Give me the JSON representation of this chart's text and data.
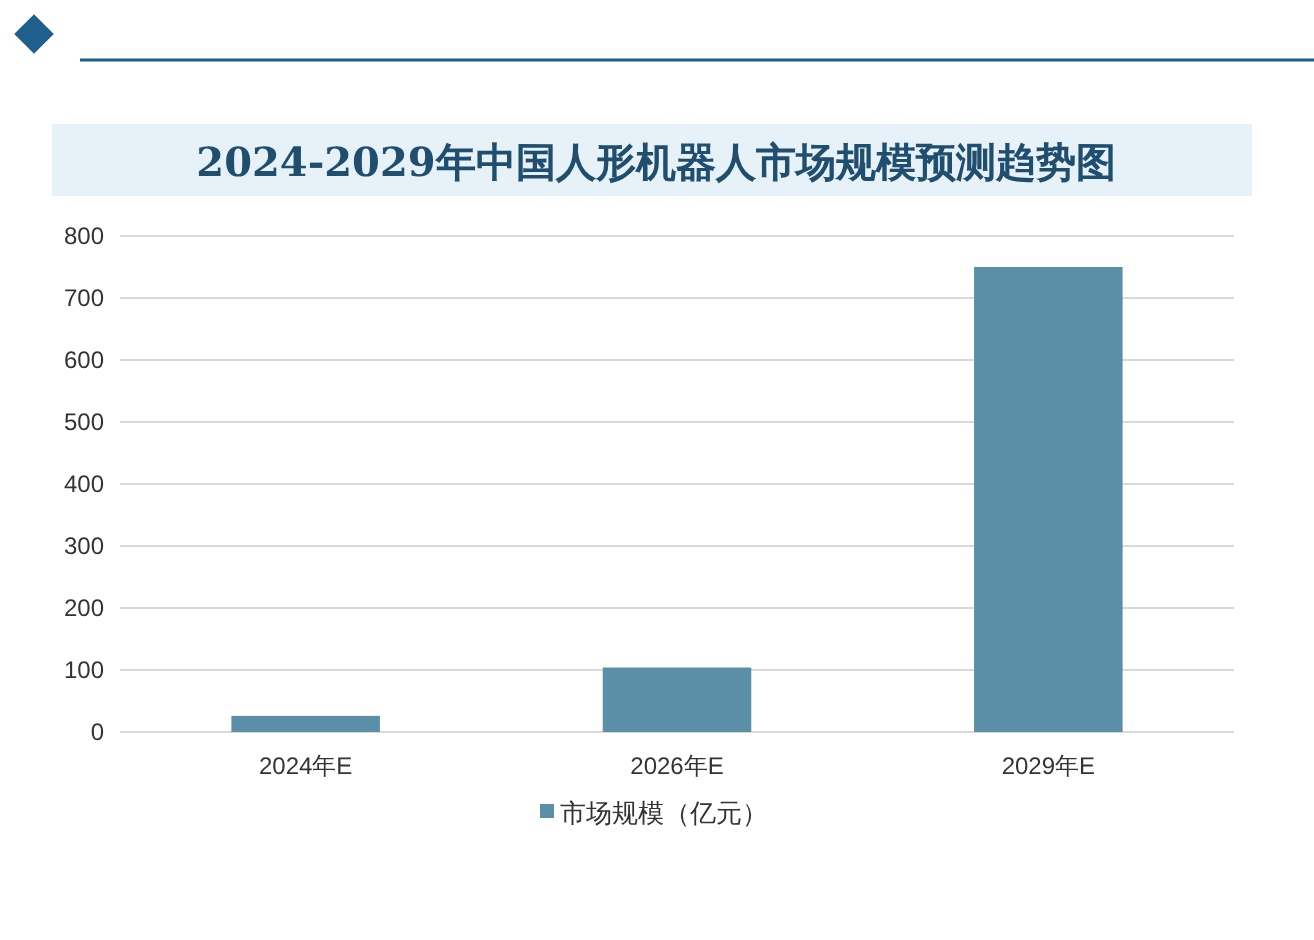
{
  "chart_data": {
    "type": "bar",
    "title": "2024-2029年中国人形机器人市场规模预测趋势图",
    "categories": [
      "2024年E",
      "2026年E",
      "2029年E"
    ],
    "series": [
      {
        "name": "市场规模（亿元）",
        "color": "#5b8fa8",
        "values": [
          26,
          104,
          750
        ]
      }
    ],
    "ylim": [
      0,
      800
    ],
    "yticks": [
      0,
      100,
      200,
      300,
      400,
      500,
      600,
      700,
      800
    ],
    "grid": "y",
    "legend": "bottom"
  }
}
